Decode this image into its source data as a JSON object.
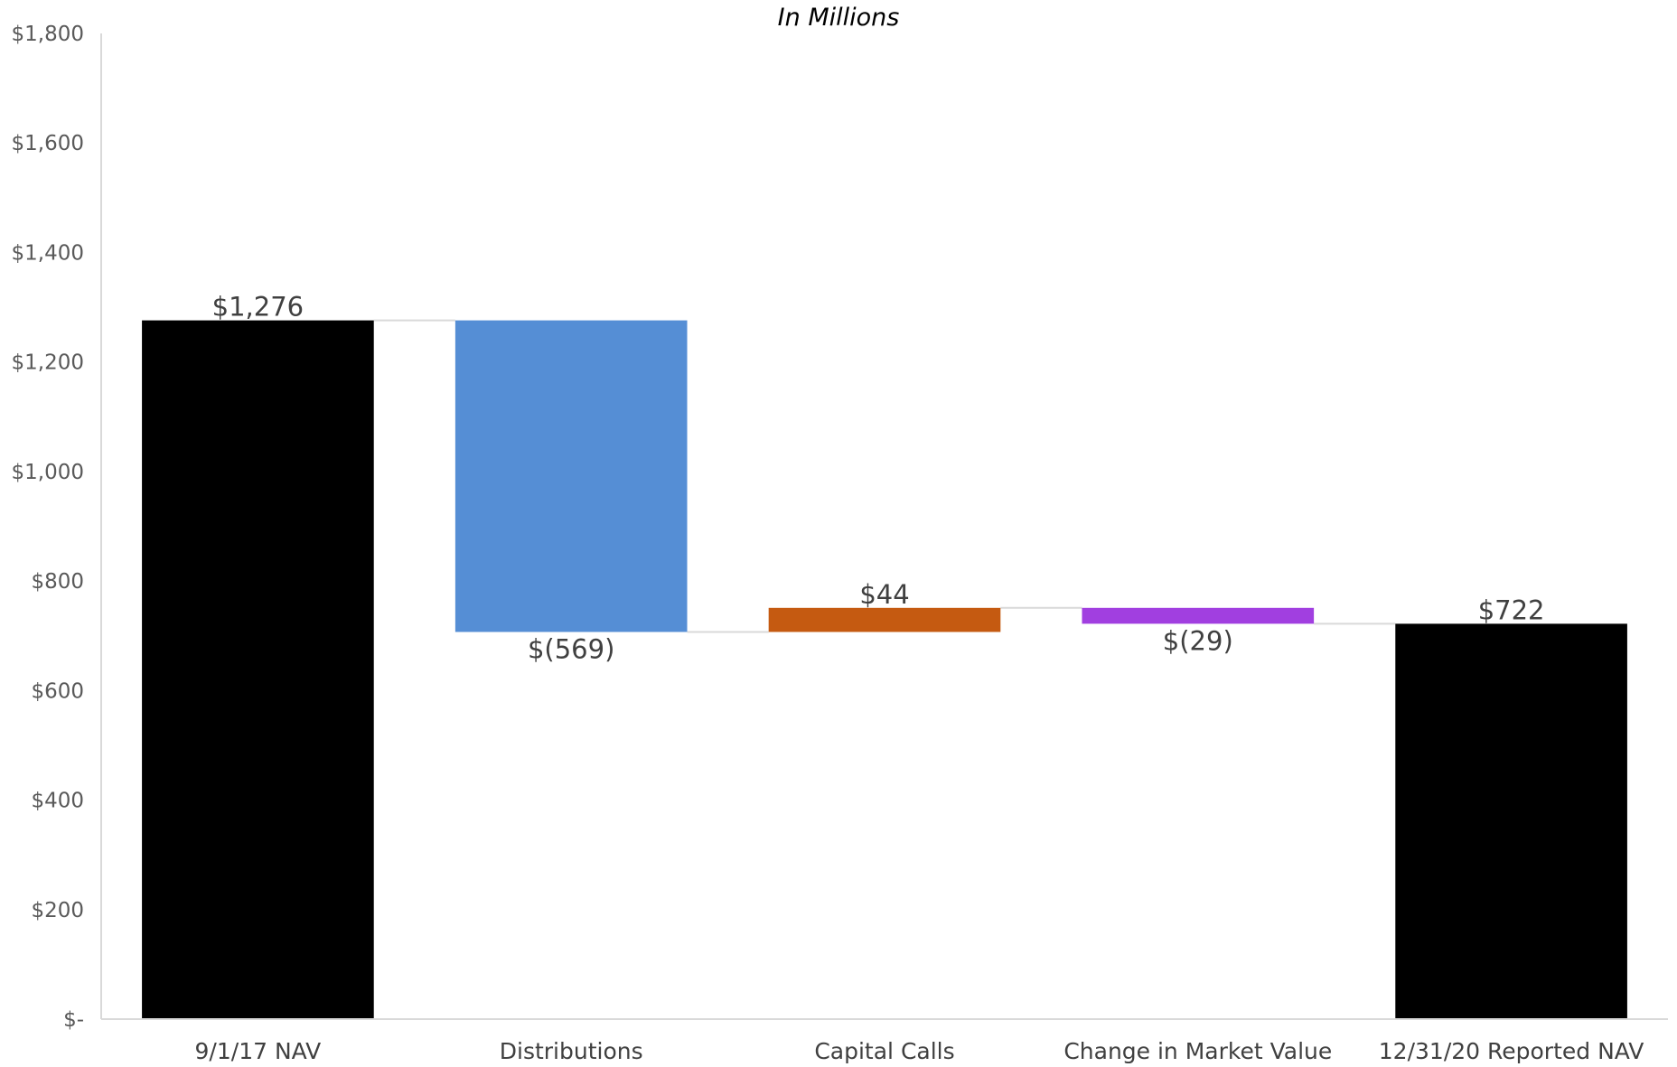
{
  "chart_data": {
    "type": "bar",
    "subtitle": "In Millions",
    "categories": [
      "9/1/17 NAV",
      "Distributions",
      "Capital Calls",
      "Change in Market Value",
      "12/31/20 Reported NAV"
    ],
    "steps": [
      {
        "kind": "total",
        "value": 1276,
        "label": "$1,276",
        "color": "#000000"
      },
      {
        "kind": "delta",
        "value": -569,
        "label": "$(569)",
        "color": "#558ED5"
      },
      {
        "kind": "delta",
        "value": 44,
        "label": "$44",
        "color": "#C55A11"
      },
      {
        "kind": "delta",
        "value": -29,
        "label": "$(29)",
        "color": "#A13FE0"
      },
      {
        "kind": "total",
        "value": 722,
        "label": "$722",
        "color": "#000000"
      }
    ],
    "ylim": [
      0,
      1800
    ],
    "yticks": [
      0,
      200,
      400,
      600,
      800,
      1000,
      1200,
      1400,
      1600,
      1800
    ],
    "ytick_labels": [
      "$-",
      "$200",
      "$400",
      "$600",
      "$800",
      "$1,000",
      "$1,200",
      "$1,400",
      "$1,600",
      "$1,800"
    ],
    "grid": false,
    "connector_color": "#D9D9D9",
    "axis_color": "#D9D9D9"
  }
}
